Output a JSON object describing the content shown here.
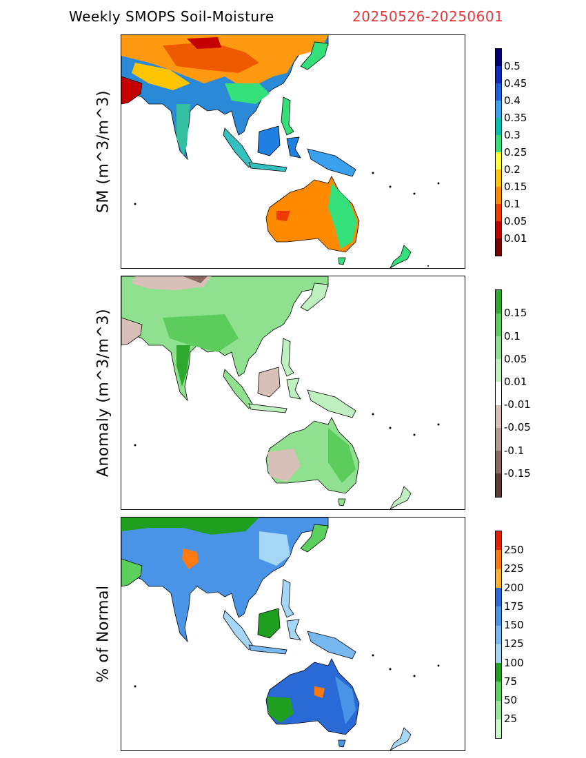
{
  "title": "Weekly SMOPS Soil-Moisture",
  "date_range": "20250526-20250601",
  "panels": [
    {
      "id": "sm",
      "ylabel": "SM (m^3/m^3)",
      "land_color_asia": "#39a6e0",
      "colorbar": {
        "colors": [
          "#7a0000",
          "#c40000",
          "#ee3a00",
          "#ff8a00",
          "#ffc400",
          "#ffff33",
          "#33e07a",
          "#00c0b0",
          "#3aa0f0",
          "#1e60e0",
          "#0a28c0",
          "#00007a"
        ],
        "labels": [
          "0.01",
          "0.05",
          "0.1",
          "0.15",
          "0.2",
          "0.25",
          "0.3",
          "0.35",
          "0.4",
          "0.45",
          "0.5"
        ]
      }
    },
    {
      "id": "anomaly",
      "ylabel": "Anomaly (m^3/m^3)",
      "colorbar": {
        "colors": [
          "#5a3a33",
          "#8a6a60",
          "#b49a90",
          "#d8c0b8",
          "#ffffff",
          "#bff0bf",
          "#8fe08f",
          "#5ccc5c",
          "#2ea82e"
        ],
        "labels": [
          "-0.15",
          "-0.1",
          "-0.05",
          "-0.01",
          "0.01",
          "0.05",
          "0.1",
          "0.15"
        ]
      }
    },
    {
      "id": "pct",
      "ylabel": "% of Normal",
      "colorbar": {
        "colors": [
          "#c8f7c8",
          "#96e896",
          "#5cd05c",
          "#1f9e1f",
          "#a6d6f5",
          "#78b8f0",
          "#4a94e8",
          "#2a6ad6",
          "#ffb030",
          "#ff7a10",
          "#e82000"
        ],
        "labels": [
          "25",
          "50",
          "75",
          "100",
          "125",
          "150",
          "175",
          "200",
          "225",
          "250"
        ]
      }
    }
  ]
}
